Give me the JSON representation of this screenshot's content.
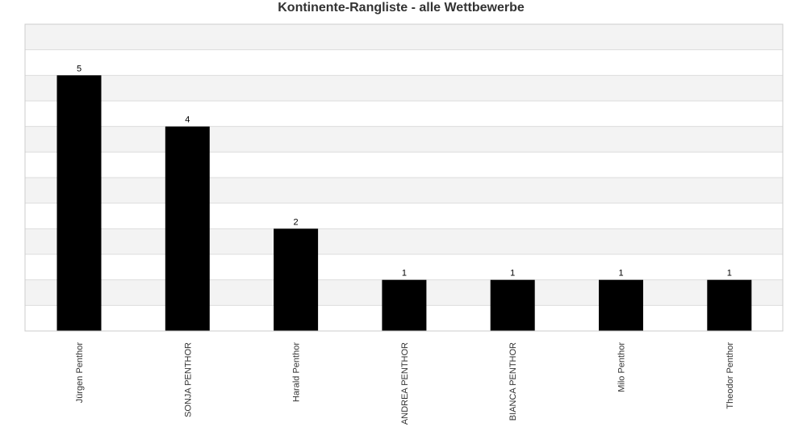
{
  "chart_data": {
    "type": "bar",
    "title": "Kontinente-Rangliste - alle Wettbewerbe",
    "xlabel": "",
    "ylabel": "",
    "categories": [
      "Jürgen Penthor",
      "SONJA PENTHOR",
      "Harald Penthor",
      "ANDREA PENTHOR",
      "BIANCA PENTHOR",
      "Milo Penthor",
      "Theodor Penthor"
    ],
    "values": [
      5,
      4,
      2,
      1,
      1,
      1,
      1
    ],
    "value_labels": [
      "5",
      "4",
      "2",
      "1",
      "1",
      "1",
      "1"
    ],
    "ylim": [
      0,
      6
    ],
    "grid": true,
    "legend": "none",
    "colors": {
      "bar": "#000000",
      "band_light": "#f3f3f3",
      "band_white": "#ffffff",
      "grid_line": "#dddddd",
      "frame": "#cccccc"
    }
  }
}
